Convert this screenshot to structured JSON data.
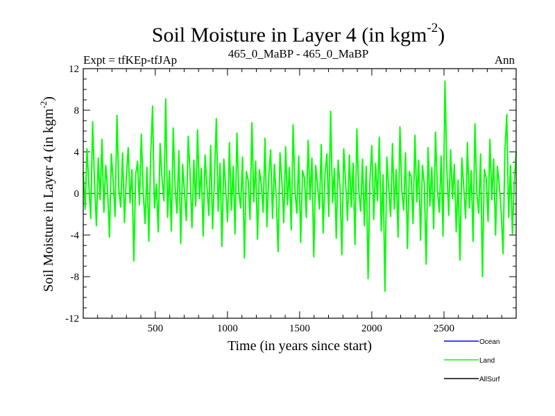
{
  "chart_data": {
    "type": "line",
    "title": "Soil Moisture in Layer 4 (in kgm",
    "title_sup": "-2",
    "title_close": ")",
    "left_label": "Expt = tfKEp-tfJAp",
    "center_label": "465_0_MaBP - 465_0_MaBP",
    "right_label": "Ann",
    "xlabel": "Time (in years since start)",
    "ylabel": "Soil Moisture in Layer 4 (in kgm",
    "ylabel_sup": "-2",
    "ylabel_close": ")",
    "xlim": [
      1,
      3000
    ],
    "ylim": [
      -12,
      12
    ],
    "xticks": [
      500,
      1000,
      1500,
      2000,
      2500
    ],
    "yticks": [
      -12,
      -8,
      -4,
      0,
      4,
      8,
      12
    ],
    "zero_line": true,
    "legend_position": "bottom-right",
    "series": [
      {
        "name": "Ocean",
        "color": "#0000ff",
        "values": []
      },
      {
        "name": "Land",
        "color": "#00ff00",
        "sample_interval_years": 15,
        "values": [
          2.1,
          -1.5,
          4.3,
          0.8,
          -2.4,
          6.9,
          1.2,
          -3.1,
          3.4,
          -0.6,
          5.2,
          -1.8,
          2.7,
          0.3,
          -4.2,
          3.8,
          1.1,
          -2.2,
          7.5,
          0.4,
          -1.3,
          3.9,
          -2.8,
          1.6,
          4.4,
          -0.9,
          2.3,
          -6.5,
          1.8,
          3.1,
          -1.1,
          5.7,
          0.2,
          -2.9,
          2.5,
          -4.6,
          3.6,
          8.4,
          -1.4,
          0.9,
          -3.7,
          4.8,
          1.5,
          -0.7,
          9.1,
          -2.3,
          2.2,
          -3.6,
          6.3,
          0.6,
          -1.9,
          4.1,
          -4.8,
          2.8,
          0.1,
          -2.6,
          5.5,
          1.9,
          -3.3,
          3.2,
          -1.2,
          6.1,
          -0.5,
          2.4,
          -4.1,
          3.7,
          0.7,
          -2.1,
          4.6,
          -3.4,
          1.4,
          7.2,
          -1.7,
          2.9,
          -5.1,
          3.3,
          0.5,
          -2.7,
          4.9,
          -1.6,
          2.6,
          -3.9,
          5.8,
          0.2,
          -1.4,
          3.5,
          -6.2,
          2.1,
          1.3,
          -2.5,
          6.8,
          -0.8,
          3.1,
          -4.4,
          2.3,
          0.9,
          -1.8,
          5.3,
          -3.2,
          1.7,
          4.2,
          -2.4,
          2.8,
          -0.4,
          -5.6,
          3.9,
          1.2,
          -2.8,
          4.5,
          -1.1,
          2.5,
          -3.5,
          6.6,
          0.3,
          -1.9,
          3.6,
          -4.7,
          2.2,
          1.5,
          -2.3,
          5.1,
          -0.6,
          3.4,
          -6.1,
          2.7,
          0.8,
          -1.5,
          4.7,
          -3.8,
          1.9,
          3.8,
          -2.2,
          7.9,
          -0.9,
          2.4,
          -4.3,
          3.2,
          0.6,
          -5.9,
          4.3,
          1.1,
          -2.6,
          3.7,
          -1.3,
          2.9,
          -4.9,
          6.2,
          0.4,
          -1.7,
          3.3,
          -3.1,
          2.6,
          -8.2,
          1.4,
          4.6,
          -2.5,
          2.9,
          -0.7,
          5.4,
          -3.6,
          1.8,
          -9.4,
          3.5,
          0.5,
          -2.2,
          4.8,
          -1.5,
          2.3,
          -4.2,
          6.4,
          0.2,
          -1.6,
          3.9,
          -5.3,
          2.1,
          1.6,
          -2.9,
          5.6,
          -0.8,
          3.2,
          -4.5,
          2.7,
          0.9,
          -6.8,
          4.4,
          -1.2,
          2.5,
          -3.4,
          5.9,
          0.3,
          -1.8,
          3.6,
          -4.1,
          10.8,
          2.4,
          -2.1,
          4.2,
          -0.5,
          2.8,
          -3.7,
          1.3,
          -6.4,
          3.4,
          0.7,
          -2.4,
          4.9,
          -1.4,
          2.2,
          -4.6,
          6.7,
          0.1,
          -1.9,
          3.8,
          -8.0,
          2.3,
          1.5,
          -2.7,
          5.2,
          -0.6,
          3.3,
          -4.0,
          2.6,
          0.8,
          -1.7,
          -5.8,
          4.1,
          7.6,
          -2.3,
          2.7,
          -3.9,
          1.2,
          4.0
        ]
      },
      {
        "name": "AllSurf",
        "color": "#000000",
        "values": []
      }
    ]
  }
}
